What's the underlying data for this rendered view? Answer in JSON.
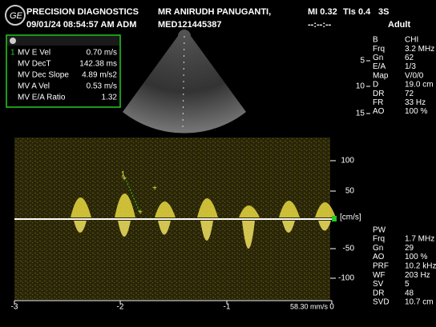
{
  "header": {
    "clinic": "PRECISION DIAGNOSTICS",
    "patient": "MR ANIRUDH PANUGANTI,",
    "patient_id": "MED121445387",
    "datetime": "09/01/24 08:54:57 AM ADM",
    "mi": "MI 0.32",
    "tis": "TIs 0.4",
    "probe": "3S",
    "clock": "--:--:--",
    "preset": "Adult"
  },
  "measurements": {
    "marker": "1",
    "rows": [
      [
        "MV E Vel",
        "0.70 m/s"
      ],
      [
        "MV DecT",
        "142.38 ms"
      ],
      [
        "MV Dec Slope",
        "4.89 m/s2"
      ],
      [
        "MV A Vel",
        "0.53 m/s"
      ],
      [
        "MV E/A Ratio",
        "1.32"
      ]
    ]
  },
  "bmode": {
    "rows": [
      [
        "B",
        "CHI"
      ],
      [
        "Frq",
        "3.2 MHz"
      ],
      [
        "Gn",
        "62"
      ],
      [
        "E/A",
        "1/3"
      ],
      [
        "Map",
        "V/0/0"
      ],
      [
        "D",
        "19.0 cm"
      ],
      [
        "DR",
        "72"
      ],
      [
        "FR",
        "33 Hz"
      ],
      [
        "AO",
        "100 %"
      ]
    ],
    "depth_ticks": [
      "5",
      "10",
      "15"
    ]
  },
  "pw": {
    "title": "PW",
    "rows": [
      [
        "Frq",
        "1.7 MHz"
      ],
      [
        "Gn",
        "29"
      ],
      [
        "AO",
        "100 %"
      ],
      [
        "PRF",
        "10.2 kHz"
      ],
      [
        "WF",
        "203 Hz"
      ],
      [
        "SV",
        "5"
      ],
      [
        "DR",
        "48"
      ],
      [
        "SVD",
        "10.7 cm"
      ]
    ]
  },
  "doppler": {
    "velocity_ticks": [
      "100",
      "50",
      "-50",
      "-100"
    ],
    "unit": "[cm/s]",
    "time_ticks": [
      "-3",
      "-2",
      "-1",
      "0"
    ],
    "sweep": "58.30 mm/s",
    "caliper": "1"
  }
}
